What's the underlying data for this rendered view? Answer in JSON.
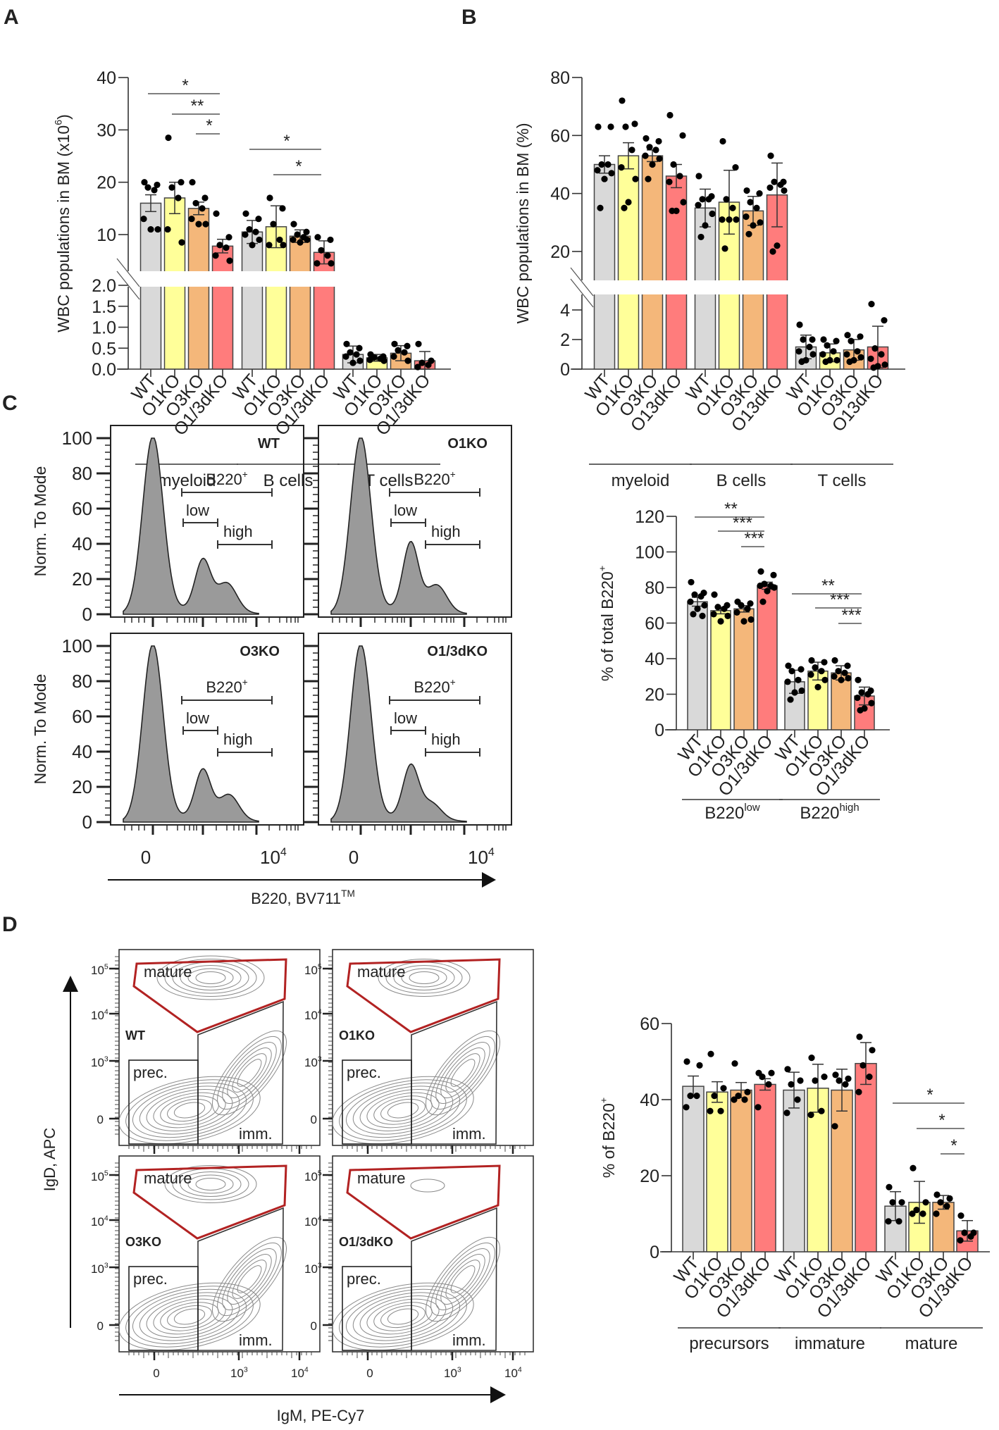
{
  "panel_labels": {
    "A": "A",
    "B": "B",
    "C": "C",
    "D": "D"
  },
  "colors": {
    "WT": "#d9d9d9",
    "O1KO": "#ffff99",
    "O3KO": "#f4b77a",
    "O1/3dKO": "#ff7c7c",
    "gate_mature": "#b22222",
    "histogram_fill": "#9a9a9a",
    "contour": "#8a8a8a"
  },
  "chart_data": [
    {
      "panel": "A",
      "type": "bar",
      "ylabel": "WBC populations in BM (x10",
      "ylabel_sup": "6",
      "ylabel_end": ")",
      "y_segments": [
        [
          0,
          2
        ],
        [
          3,
          40
        ]
      ],
      "yticks": [
        "0.0",
        "0.5",
        "1.0",
        "1.5",
        "2.0",
        "10",
        "20",
        "30",
        "40"
      ],
      "grid": false,
      "groups": [
        {
          "name": "myeloid",
          "bars": [
            {
              "category": "WT",
              "mean": 16,
              "error": 1.6,
              "points": [
                20,
                19.5,
                19,
                18.5,
                13,
                11,
                11
              ]
            },
            {
              "category": "O1KO",
              "mean": 17,
              "error": 3,
              "points": [
                28.5,
                20,
                19,
                17,
                11,
                8.5
              ]
            },
            {
              "category": "O3KO",
              "mean": 15,
              "error": 1.2,
              "points": [
                20,
                17,
                16,
                15,
                13,
                12,
                12
              ]
            },
            {
              "category": "O1/3dKO",
              "mean": 7.8,
              "error": 1.3,
              "points": [
                14,
                9.5,
                8,
                7.5,
                6,
                5
              ]
            }
          ],
          "significance": [
            {
              "from": "WT",
              "to": "O1/3dKO",
              "label": "*"
            },
            {
              "from": "O1KO",
              "to": "O1/3dKO",
              "label": "**"
            },
            {
              "from": "O3KO",
              "to": "O1/3dKO",
              "label": "*"
            }
          ]
        },
        {
          "name": "B cells",
          "bars": [
            {
              "category": "WT",
              "mean": 10.5,
              "error": 2.2,
              "points": [
                14,
                13,
                11,
                10.5,
                10,
                9,
                8
              ]
            },
            {
              "category": "O1KO",
              "mean": 11.5,
              "error": 4,
              "points": [
                17,
                15,
                12,
                9,
                8,
                8
              ]
            },
            {
              "category": "O3KO",
              "mean": 9.7,
              "error": 1.2,
              "points": [
                12,
                10.5,
                10,
                9.5,
                9,
                9,
                8.5
              ]
            },
            {
              "category": "O1/3dKO",
              "mean": 6.6,
              "error": 2.2,
              "points": [
                9.5,
                9,
                7,
                6,
                4.5,
                4.5
              ]
            }
          ],
          "significance": [
            {
              "from": "WT",
              "to": "O1/3dKO",
              "label": "*"
            },
            {
              "from": "O1KO",
              "to": "O1/3dKO",
              "label": "*"
            }
          ]
        },
        {
          "name": "T cells",
          "bars": [
            {
              "category": "WT",
              "mean": 0.35,
              "error": 0.2,
              "points": [
                0.6,
                0.5,
                0.4,
                0.35,
                0.3,
                0.2,
                0.15
              ]
            },
            {
              "category": "O1KO",
              "mean": 0.27,
              "error": 0.08,
              "points": [
                0.35,
                0.3,
                0.28,
                0.25,
                0.22,
                0.2
              ]
            },
            {
              "category": "O3KO",
              "mean": 0.38,
              "error": 0.18,
              "points": [
                0.6,
                0.55,
                0.45,
                0.4,
                0.3,
                0.2
              ]
            },
            {
              "category": "O1/3dKO",
              "mean": 0.2,
              "error": 0.22,
              "points": [
                0.6,
                0.2,
                0.15,
                0.1,
                0.05
              ]
            }
          ],
          "significance": []
        }
      ]
    },
    {
      "panel": "B",
      "type": "bar",
      "ylabel": "WBC populations in BM (%)",
      "ylabel_sup": "",
      "ylabel_end": "",
      "y_segments": [
        [
          0,
          5
        ],
        [
          10,
          80
        ]
      ],
      "yticks": [
        "0",
        "2",
        "4",
        "20",
        "40",
        "60",
        "80"
      ],
      "grid": false,
      "groups": [
        {
          "name": "myeloid",
          "bars": [
            {
              "category": "WT",
              "mean": 50,
              "error": 3,
              "points": [
                63,
                63,
                50,
                50,
                48,
                47,
                45,
                35
              ]
            },
            {
              "category": "O1KO",
              "mean": 53,
              "error": 4.5,
              "points": [
                72,
                64,
                63,
                55,
                49,
                45,
                37,
                35
              ]
            },
            {
              "category": "O3KO",
              "mean": 53,
              "error": 2,
              "points": [
                59,
                58,
                56,
                55,
                53,
                52,
                50,
                45
              ]
            },
            {
              "category": "O13dKO",
              "mean": 46,
              "error": 4,
              "points": [
                67,
                60,
                50,
                46,
                44,
                37,
                34,
                34
              ]
            }
          ],
          "significance": []
        },
        {
          "name": "B cells",
          "bars": [
            {
              "category": "WT",
              "mean": 35,
              "error": 6.5,
              "points": [
                46,
                39,
                38,
                38,
                36,
                33,
                29,
                25
              ]
            },
            {
              "category": "O1KO",
              "mean": 37,
              "error": 11,
              "points": [
                58,
                49,
                38,
                35,
                31,
                31,
                31,
                21
              ]
            },
            {
              "category": "O3KO",
              "mean": 34,
              "error": 5,
              "points": [
                41,
                40,
                37,
                35,
                32,
                30,
                29,
                26
              ]
            },
            {
              "category": "O13dKO",
              "mean": 39.5,
              "error": 11,
              "points": [
                53,
                44,
                44,
                43,
                42,
                41,
                22,
                20
              ]
            }
          ],
          "significance": []
        },
        {
          "name": "T cells",
          "bars": [
            {
              "category": "WT",
              "mean": 1.5,
              "error": 0.8,
              "points": [
                3,
                2,
                2,
                1.5,
                1.2,
                1,
                0.6,
                0.5
              ]
            },
            {
              "category": "O1KO",
              "mean": 1.1,
              "error": 0.6,
              "points": [
                2,
                1.9,
                1.6,
                1.2,
                1,
                0.6,
                0.6,
                0.5
              ]
            },
            {
              "category": "O3KO",
              "mean": 1.3,
              "error": 0.7,
              "points": [
                2.3,
                2.2,
                1.9,
                1.2,
                1,
                0.8,
                0.6,
                0.5
              ]
            },
            {
              "category": "O13dKO",
              "mean": 1.5,
              "error": 1.4,
              "points": [
                4.4,
                3.3,
                1.4,
                1,
                0.7,
                0.3,
                0.2,
                0.1
              ]
            }
          ],
          "significance": []
        }
      ]
    },
    {
      "panel": "C",
      "type": "bar",
      "ylabel": "% of total B220",
      "ylabel_sup": "+",
      "ylabel_end": "",
      "y_segments": [
        [
          0,
          120
        ]
      ],
      "yticks": [
        "0",
        "20",
        "40",
        "60",
        "80",
        "100",
        "120"
      ],
      "grid": false,
      "groups": [
        {
          "name": "B220",
          "name_sup": "low",
          "bars": [
            {
              "category": "WT",
              "mean": 72,
              "error": 2.5,
              "points": [
                83,
                77,
                76,
                75,
                72,
                70,
                68,
                65,
                64
              ]
            },
            {
              "category": "O1KO",
              "mean": 67,
              "error": 1.8,
              "points": [
                76,
                70,
                69,
                68,
                65,
                64,
                61
              ]
            },
            {
              "category": "O3KO",
              "mean": 68,
              "error": 1.8,
              "points": [
                72,
                71,
                70,
                68,
                66,
                62,
                61
              ]
            },
            {
              "category": "O1/3dKO",
              "mean": 81,
              "error": 2,
              "points": [
                89,
                87,
                82,
                81,
                81,
                80,
                78,
                72
              ]
            }
          ],
          "significance": [
            {
              "from": "WT",
              "to": "O1/3dKO",
              "label": "**"
            },
            {
              "from": "O1KO",
              "to": "O1/3dKO",
              "label": "***"
            },
            {
              "from": "O3KO",
              "to": "O1/3dKO",
              "label": "***"
            }
          ]
        },
        {
          "name": "B220",
          "name_sup": "high",
          "bars": [
            {
              "category": "WT",
              "mean": 27,
              "error": 6.5,
              "points": [
                36,
                34,
                33,
                28,
                27,
                22,
                21,
                17
              ]
            },
            {
              "category": "O1KO",
              "mean": 33,
              "error": 5,
              "points": [
                39,
                38,
                35,
                33,
                31,
                28,
                24
              ]
            },
            {
              "category": "O3KO",
              "mean": 32,
              "error": 4,
              "points": [
                39,
                36,
                33,
                32,
                30,
                29,
                28
              ]
            },
            {
              "category": "O1/3dKO",
              "mean": 19,
              "error": 5,
              "points": [
                28,
                22,
                21,
                20,
                18,
                15,
                12,
                11
              ]
            }
          ],
          "significance": [
            {
              "from": "WT",
              "to": "O1/3dKO",
              "label": "**"
            },
            {
              "from": "O1KO",
              "to": "O1/3dKO",
              "label": "***"
            },
            {
              "from": "O3KO",
              "to": "O1/3dKO",
              "label": "***"
            }
          ]
        }
      ]
    },
    {
      "panel": "D",
      "type": "bar",
      "ylabel": "% of B220",
      "ylabel_sup": "+",
      "ylabel_end": "",
      "y_segments": [
        [
          0,
          60
        ]
      ],
      "yticks": [
        "0",
        "20",
        "40",
        "60"
      ],
      "grid": false,
      "groups": [
        {
          "name": "precursors",
          "bars": [
            {
              "category": "WT",
              "mean": 43.5,
              "error": 2.7,
              "points": [
                50,
                49,
                41,
                41,
                38
              ]
            },
            {
              "category": "O1KO",
              "mean": 42,
              "error": 2.7,
              "points": [
                52,
                43,
                41,
                37,
                37
              ]
            },
            {
              "category": "O3KO",
              "mean": 42.5,
              "error": 2,
              "points": [
                49.5,
                42,
                41,
                40,
                40
              ]
            },
            {
              "category": "O1/3dKO",
              "mean": 44,
              "error": 1.5,
              "points": [
                47,
                47,
                46,
                44,
                38
              ]
            }
          ],
          "significance": []
        },
        {
          "name": "immature",
          "bars": [
            {
              "category": "WT",
              "mean": 42.5,
              "error": 4.7,
              "points": [
                48,
                45,
                44,
                40,
                36.5
              ]
            },
            {
              "category": "O1KO",
              "mean": 43,
              "error": 6.3,
              "points": [
                51,
                46,
                45,
                37,
                36
              ]
            },
            {
              "category": "O3KO",
              "mean": 42.5,
              "error": 5.5,
              "points": [
                46.5,
                45.5,
                45,
                44,
                33
              ]
            },
            {
              "category": "O1/3dKO",
              "mean": 49.5,
              "error": 5.5,
              "points": [
                56.5,
                53,
                49,
                46,
                42
              ]
            }
          ],
          "significance": []
        },
        {
          "name": "mature",
          "bars": [
            {
              "category": "WT",
              "mean": 12,
              "error": 3.8,
              "points": [
                17,
                13,
                13,
                8,
                8
              ]
            },
            {
              "category": "O1KO",
              "mean": 13,
              "error": 5.5,
              "points": [
                22,
                13,
                11,
                10,
                10
              ]
            },
            {
              "category": "O3KO",
              "mean": 13,
              "error": 1.8,
              "points": [
                15,
                14,
                13,
                12,
                10
              ]
            },
            {
              "category": "O1/3dKO",
              "mean": 5.5,
              "error": 2.7,
              "points": [
                9.5,
                5,
                5,
                4,
                3
              ]
            }
          ],
          "significance": [
            {
              "from": "WT",
              "to": "O1/3dKO",
              "label": "*"
            },
            {
              "from": "O1KO",
              "to": "O1/3dKO",
              "label": "*"
            },
            {
              "from": "O3KO",
              "to": "O1/3dKO",
              "label": "*"
            }
          ]
        }
      ]
    }
  ],
  "panel_C": {
    "ylabel": "Norm. To Mode",
    "yticks": [
      "0",
      "20",
      "40",
      "60",
      "80",
      "100"
    ],
    "xticks": [
      {
        "base": "0",
        "sup": ""
      },
      {
        "base": "10",
        "sup": "4"
      }
    ],
    "xlabel": "B220, BV711",
    "xlabel_sup": "TM",
    "gates": {
      "positive": "B220",
      "positive_sup": "+",
      "low": "low",
      "high": "high"
    },
    "histograms": [
      {
        "sample": "WT"
      },
      {
        "sample": "O1KO"
      },
      {
        "sample": "O3KO"
      },
      {
        "sample": "O1/3dKO"
      }
    ]
  },
  "panel_D": {
    "ylabel": "IgD, APC",
    "xlabel": "IgM, PE-Cy7",
    "yticks": [
      {
        "base": "10",
        "sup": "5"
      },
      {
        "base": "10",
        "sup": "4"
      },
      {
        "base": "10",
        "sup": "3"
      },
      {
        "base": "0",
        "sup": ""
      }
    ],
    "xticks": [
      {
        "base": "0",
        "sup": ""
      },
      {
        "base": "10",
        "sup": "3"
      },
      {
        "base": "10",
        "sup": "4"
      }
    ],
    "gates": {
      "mature": "mature",
      "precursors": "prec.",
      "immature": "imm."
    },
    "plots": [
      {
        "sample": "WT"
      },
      {
        "sample": "O1KO"
      },
      {
        "sample": "O3KO"
      },
      {
        "sample": "O1/3dKO"
      }
    ]
  }
}
